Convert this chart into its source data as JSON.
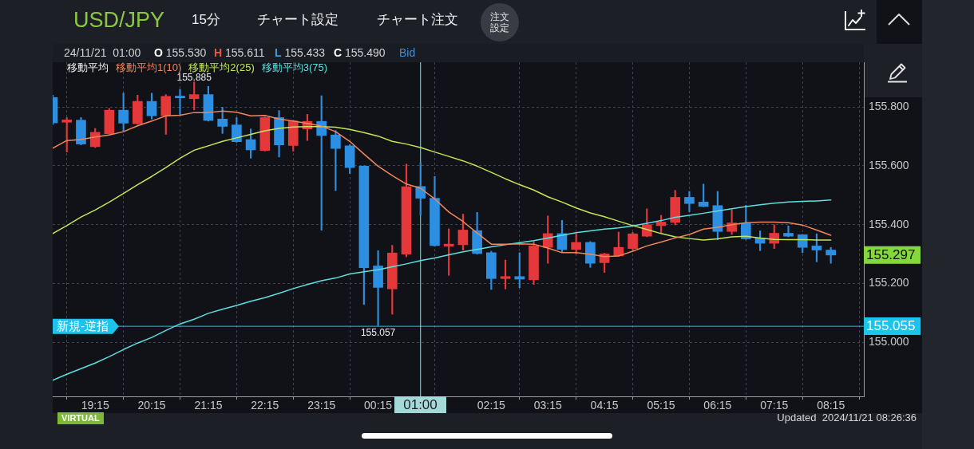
{
  "chart_data": {
    "type": "candlestick",
    "title": "USD/JPY",
    "subtitle": "15分",
    "legend_title": "移動平均",
    "legend": "top left",
    "grid": true,
    "x": [
      "2024-11-20T18:30",
      "2024-11-20T18:45",
      "2024-11-20T19:00",
      "2024-11-20T19:15",
      "2024-11-20T19:30",
      "2024-11-20T19:45",
      "2024-11-20T20:00",
      "2024-11-20T20:15",
      "2024-11-20T20:30",
      "2024-11-20T20:45",
      "2024-11-20T21:00",
      "2024-11-20T21:15",
      "2024-11-20T21:30",
      "2024-11-20T21:45",
      "2024-11-20T22:00",
      "2024-11-20T22:15",
      "2024-11-20T22:30",
      "2024-11-20T22:45",
      "2024-11-20T23:00",
      "2024-11-20T23:15",
      "2024-11-20T23:30",
      "2024-11-20T23:45",
      "2024-11-21T00:00",
      "2024-11-21T00:15",
      "2024-11-21T00:30",
      "2024-11-21T00:45",
      "2024-11-21T01:00",
      "2024-11-21T01:15",
      "2024-11-21T01:30",
      "2024-11-21T01:45",
      "2024-11-21T02:00",
      "2024-11-21T02:15",
      "2024-11-21T02:30",
      "2024-11-21T02:45",
      "2024-11-21T03:00",
      "2024-11-21T03:15",
      "2024-11-21T03:30",
      "2024-11-21T03:45",
      "2024-11-21T04:00",
      "2024-11-21T04:15",
      "2024-11-21T04:30",
      "2024-11-21T04:45",
      "2024-11-21T05:00",
      "2024-11-21T05:15",
      "2024-11-21T05:30",
      "2024-11-21T05:45",
      "2024-11-21T06:00",
      "2024-11-21T06:15",
      "2024-11-21T06:30",
      "2024-11-21T06:45",
      "2024-11-21T07:00",
      "2024-11-21T07:15",
      "2024-11-21T07:30",
      "2024-11-21T07:45",
      "2024-11-21T08:00",
      "2024-11-21T08:15"
    ],
    "ohlc": [
      [
        155.832,
        155.84,
        155.74,
        155.746
      ],
      [
        155.748,
        155.764,
        155.647,
        155.756
      ],
      [
        155.755,
        155.764,
        155.671,
        155.674
      ],
      [
        155.665,
        155.727,
        155.662,
        155.714
      ],
      [
        155.709,
        155.795,
        155.707,
        155.789
      ],
      [
        155.789,
        155.847,
        155.719,
        155.745
      ],
      [
        155.743,
        155.84,
        155.741,
        155.819
      ],
      [
        155.819,
        155.847,
        155.759,
        155.77
      ],
      [
        155.77,
        155.842,
        155.707,
        155.836
      ],
      [
        155.837,
        155.86,
        155.773,
        155.831
      ],
      [
        155.828,
        155.885,
        155.79,
        155.842
      ],
      [
        155.842,
        155.87,
        155.752,
        155.754
      ],
      [
        155.759,
        155.799,
        155.71,
        155.734
      ],
      [
        155.739,
        155.764,
        155.68,
        155.682
      ],
      [
        155.689,
        155.725,
        155.626,
        155.654
      ],
      [
        155.652,
        155.766,
        155.65,
        155.764
      ],
      [
        155.764,
        155.788,
        155.63,
        155.671
      ],
      [
        155.669,
        155.754,
        155.65,
        155.752
      ],
      [
        155.725,
        155.775,
        155.686,
        155.751
      ],
      [
        155.751,
        155.838,
        155.381,
        155.703
      ],
      [
        155.705,
        155.72,
        155.516,
        155.659
      ],
      [
        155.668,
        155.672,
        155.574,
        155.594
      ],
      [
        155.599,
        155.6,
        155.129,
        155.254
      ],
      [
        155.26,
        155.312,
        155.057,
        155.187
      ],
      [
        155.182,
        155.33,
        155.096,
        155.304
      ],
      [
        155.3,
        155.606,
        155.291,
        155.529
      ],
      [
        155.53,
        155.611,
        155.433,
        155.49
      ],
      [
        155.49,
        155.564,
        155.327,
        155.329
      ],
      [
        155.327,
        155.386,
        155.228,
        155.334
      ],
      [
        155.332,
        155.436,
        155.314,
        155.382
      ],
      [
        155.38,
        155.442,
        155.3,
        155.302
      ],
      [
        155.305,
        155.31,
        155.18,
        155.217
      ],
      [
        155.217,
        155.28,
        155.182,
        155.224
      ],
      [
        155.224,
        155.305,
        155.186,
        155.215
      ],
      [
        155.213,
        155.343,
        155.197,
        155.328
      ],
      [
        155.323,
        155.43,
        155.269,
        155.37
      ],
      [
        155.37,
        155.415,
        155.308,
        155.316
      ],
      [
        155.316,
        155.37,
        155.301,
        155.34
      ],
      [
        155.34,
        155.343,
        155.255,
        155.269
      ],
      [
        155.271,
        155.303,
        155.238,
        155.301
      ],
      [
        155.294,
        155.375,
        155.292,
        155.323
      ],
      [
        155.319,
        155.374,
        155.314,
        155.369
      ],
      [
        155.361,
        155.454,
        155.359,
        155.4
      ],
      [
        155.397,
        155.432,
        155.373,
        155.409
      ],
      [
        155.408,
        155.517,
        155.399,
        155.493
      ],
      [
        155.493,
        155.513,
        155.444,
        155.472
      ],
      [
        155.477,
        155.538,
        155.461,
        155.462
      ],
      [
        155.465,
        155.513,
        155.349,
        155.377
      ],
      [
        155.377,
        155.451,
        155.367,
        155.406
      ],
      [
        155.404,
        155.466,
        155.35,
        155.352
      ],
      [
        155.355,
        155.379,
        155.312,
        155.337
      ],
      [
        155.337,
        155.4,
        155.319,
        155.371
      ],
      [
        155.371,
        155.396,
        155.359,
        155.361
      ],
      [
        155.366,
        155.367,
        155.305,
        155.323
      ],
      [
        155.328,
        155.369,
        155.274,
        155.314
      ],
      [
        155.314,
        155.323,
        155.269,
        155.297
      ]
    ],
    "colors": [
      "#2c8fe2",
      "#e5383b",
      "#2c8fe2",
      "#e5383b",
      "#e5383b",
      "#2c8fe2",
      "#e5383b",
      "#2c8fe2",
      "#e5383b",
      "#2c8fe2",
      "#e5383b",
      "#2c8fe2",
      "#2c8fe2",
      "#2c8fe2",
      "#2c8fe2",
      "#e5383b",
      "#2c8fe2",
      "#e5383b",
      "#e5383b",
      "#2c8fe2",
      "#2c8fe2",
      "#2c8fe2",
      "#2c8fe2",
      "#2c8fe2",
      "#e5383b",
      "#e5383b",
      "#2c8fe2",
      "#2c8fe2",
      "#e5383b",
      "#e5383b",
      "#2c8fe2",
      "#2c8fe2",
      "#e5383b",
      "#2c8fe2",
      "#e5383b",
      "#e5383b",
      "#2c8fe2",
      "#e5383b",
      "#2c8fe2",
      "#e5383b",
      "#e5383b",
      "#e5383b",
      "#e5383b",
      "#e5383b",
      "#e5383b",
      "#2c8fe2",
      "#2c8fe2",
      "#2c8fe2",
      "#e5383b",
      "#2c8fe2",
      "#2c8fe2",
      "#e5383b",
      "#2c8fe2",
      "#2c8fe2",
      "#2c8fe2",
      "#2c8fe2"
    ],
    "series": [
      {
        "name": "移動平均1(10)",
        "type": "line",
        "color": "#f0875c",
        "values": [
          155.66,
          155.686,
          155.689,
          155.698,
          155.705,
          155.716,
          155.736,
          155.752,
          155.77,
          155.772,
          155.781,
          155.781,
          155.786,
          155.782,
          155.77,
          155.771,
          155.759,
          155.752,
          155.744,
          155.735,
          155.716,
          155.683,
          155.64,
          155.599,
          155.567,
          155.538,
          155.524,
          155.488,
          155.443,
          155.411,
          155.372,
          155.334,
          155.334,
          155.335,
          155.334,
          155.321,
          155.305,
          155.305,
          155.3,
          155.292,
          155.294,
          155.31,
          155.328,
          155.341,
          155.355,
          155.367,
          155.385,
          155.391,
          155.4,
          155.407,
          155.409,
          155.409,
          155.407,
          155.399,
          155.382,
          155.364
        ]
      },
      {
        "name": "移動平均2(25)",
        "type": "line",
        "color": "#c4e65a",
        "values": [
          155.37,
          155.397,
          155.426,
          155.45,
          155.477,
          155.506,
          155.536,
          155.564,
          155.594,
          155.626,
          155.653,
          155.668,
          155.683,
          155.695,
          155.707,
          155.719,
          155.727,
          155.732,
          155.733,
          155.733,
          155.731,
          155.724,
          155.713,
          155.701,
          155.683,
          155.674,
          155.662,
          155.647,
          155.632,
          155.617,
          155.599,
          155.578,
          155.556,
          155.536,
          155.518,
          155.495,
          155.477,
          155.457,
          155.44,
          155.427,
          155.412,
          155.397,
          155.384,
          155.37,
          155.359,
          155.353,
          155.348,
          155.352,
          155.359,
          155.361,
          155.355,
          155.35,
          155.349,
          155.349,
          155.348,
          155.348
        ]
      },
      {
        "name": "移動平均3(75)",
        "type": "line",
        "color": "#5ddfe0",
        "values": [
          154.872,
          154.892,
          154.911,
          154.93,
          154.952,
          154.976,
          154.998,
          155.017,
          155.041,
          155.063,
          155.079,
          155.099,
          155.113,
          155.126,
          155.14,
          155.152,
          155.167,
          155.183,
          155.197,
          155.21,
          155.219,
          155.233,
          155.24,
          155.247,
          155.257,
          155.267,
          155.278,
          155.287,
          155.298,
          155.308,
          155.316,
          155.325,
          155.332,
          155.339,
          155.346,
          155.355,
          155.364,
          155.373,
          155.379,
          155.385,
          155.389,
          155.396,
          155.405,
          155.414,
          155.425,
          155.432,
          155.439,
          155.447,
          155.454,
          155.462,
          155.468,
          155.473,
          155.477,
          155.479,
          155.481,
          155.484
        ]
      }
    ],
    "xlim": [
      "2024-11-20T18:30",
      "2024-11-21T08:50"
    ],
    "xticks": [
      {
        "value": "2024-11-20T19:15",
        "label": "19:15"
      },
      {
        "value": "2024-11-20T20:15",
        "label": "20:15"
      },
      {
        "value": "2024-11-20T21:15",
        "label": "21:15"
      },
      {
        "value": "2024-11-20T22:15",
        "label": "22:15"
      },
      {
        "value": "2024-11-20T23:15",
        "label": "23:15"
      },
      {
        "value": "2024-11-21T00:15",
        "label": "00:15"
      },
      {
        "value": "2024-11-21T02:15",
        "label": "02:15"
      },
      {
        "value": "2024-11-21T03:15",
        "label": "03:15"
      },
      {
        "value": "2024-11-21T04:15",
        "label": "04:15"
      },
      {
        "value": "2024-11-21T05:15",
        "label": "05:15"
      },
      {
        "value": "2024-11-21T06:15",
        "label": "06:15"
      },
      {
        "value": "2024-11-21T07:15",
        "label": "07:15"
      },
      {
        "value": "2024-11-21T08:15",
        "label": "08:15"
      }
    ],
    "ylim": [
      154.817,
      155.952
    ],
    "yticks": [
      {
        "value": 155,
        "label": "155.000"
      },
      {
        "value": 155.2,
        "label": "155.200"
      },
      {
        "value": 155.4,
        "label": "155.400"
      },
      {
        "value": 155.6,
        "label": "155.600"
      },
      {
        "value": 155.8,
        "label": "155.800"
      }
    ],
    "ref_lines": [
      {
        "axis": "y",
        "value": 155.055,
        "label": "新規-逆指",
        "color": "#1cc4ec"
      },
      {
        "axis": "x",
        "value": "2024-11-21T01:00",
        "color": "#a3d9d8"
      }
    ],
    "annotations": [
      {
        "text": "155.885",
        "x": "2024-11-20T21:00",
        "y": 155.885
      },
      {
        "text": "155.057",
        "x": "2024-11-21T00:15",
        "y": 155.057
      },
      {
        "text": "155.297",
        "x": "2024-11-21T08:15",
        "y": 155.297
      },
      "155.055",
      "01:00",
      "チャート設定",
      "チャート注文",
      "注文設定",
      "24/11/21  01:00",
      "O 155.530",
      "H 155.611",
      "L 155.433",
      "C 155.490",
      "Bid",
      "VIRTUAL",
      "Updated  2024/11/21 08:26:36"
    ]
  }
}
